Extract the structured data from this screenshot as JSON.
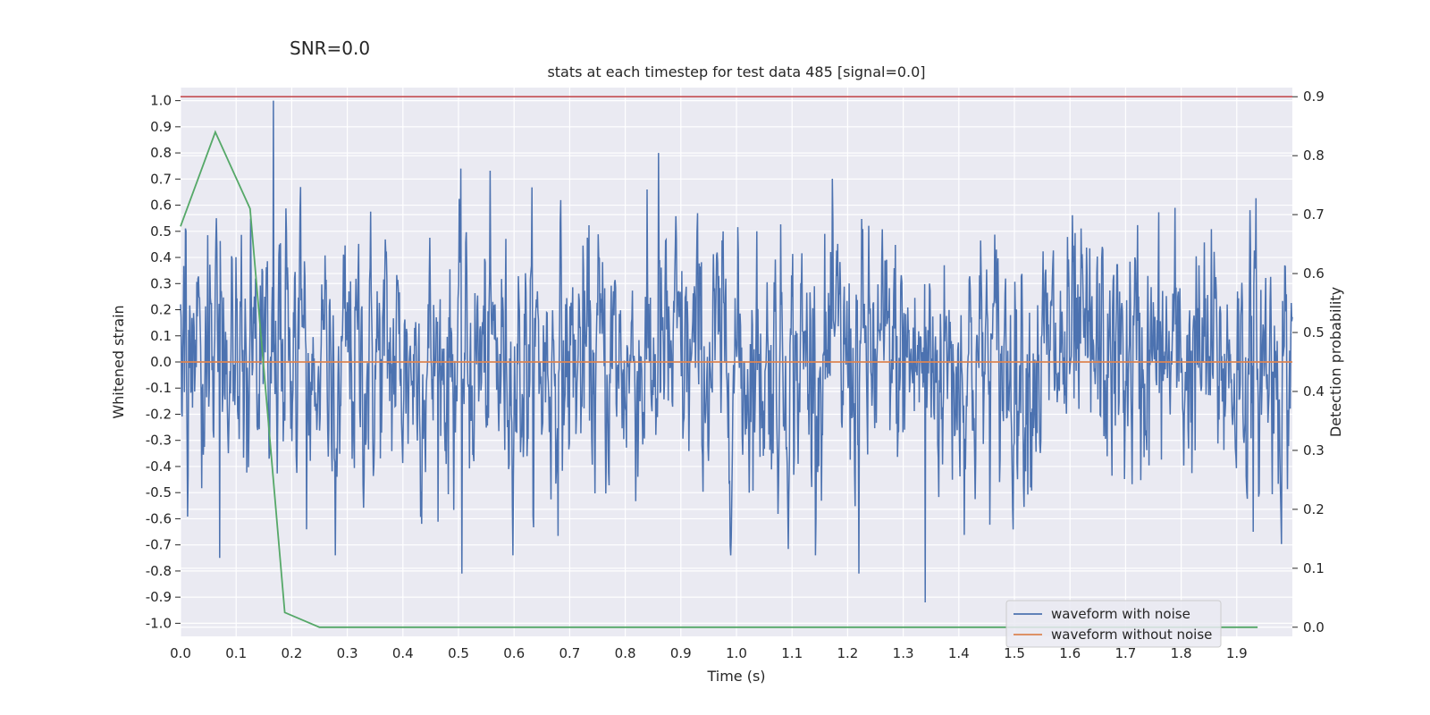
{
  "snr_label": "SNR=0.0",
  "chart_data": {
    "type": "line",
    "title": "stats at each timestep for test data 485 [signal=0.0]",
    "xlabel": "Time (s)",
    "ylabel": "Whitened strain",
    "y2label": "Detection probability",
    "xlim": [
      0.0,
      2.0
    ],
    "ylim": [
      -1.05,
      1.05
    ],
    "y2lim": [
      -0.0155,
      0.9155
    ],
    "xticks": [
      "0.0",
      "0.1",
      "0.2",
      "0.3",
      "0.4",
      "0.5",
      "0.6",
      "0.7",
      "0.8",
      "0.9",
      "1.0",
      "1.1",
      "1.2",
      "1.3",
      "1.4",
      "1.5",
      "1.6",
      "1.7",
      "1.8",
      "1.9"
    ],
    "yticks": [
      "1.0",
      "0.9",
      "0.8",
      "0.7",
      "0.6",
      "0.5",
      "0.4",
      "0.3",
      "0.2",
      "0.1",
      "0.0",
      "-0.1",
      "-0.2",
      "-0.3",
      "-0.4",
      "-0.5",
      "-0.6",
      "-0.7",
      "-0.8",
      "-0.9",
      "-1.0"
    ],
    "y2ticks": [
      "0.9",
      "0.8",
      "0.7",
      "0.6",
      "0.5",
      "0.4",
      "0.3",
      "0.2",
      "0.1",
      "0.0"
    ],
    "grid": true,
    "legend_position": "lower-right",
    "series": [
      {
        "name": "waveform with noise",
        "color": "#4c72b0",
        "axis": "left",
        "sampled": true,
        "x_range": [
          0.0,
          2.0
        ],
        "extremes": [
          {
            "x": 0.07,
            "y": -0.75
          },
          {
            "x": 0.167,
            "y": 1.0
          },
          {
            "x": 0.506,
            "y": -0.81
          },
          {
            "x": 0.86,
            "y": 0.8
          },
          {
            "x": 1.22,
            "y": -0.81
          },
          {
            "x": 1.34,
            "y": -0.92
          },
          {
            "x": 1.93,
            "y": -0.65
          }
        ]
      },
      {
        "name": "waveform without noise",
        "color": "#dd8452",
        "axis": "left",
        "x": [
          0.0,
          2.0
        ],
        "y": [
          0.0,
          0.0
        ]
      },
      {
        "color": "#55a868",
        "axis": "right",
        "x": [
          0.0,
          0.0625,
          0.125,
          0.1875,
          0.25,
          0.3125,
          0.375,
          0.4375,
          0.5,
          0.5625,
          0.625,
          0.6875,
          0.75,
          0.8125,
          0.875,
          0.9375,
          1.0,
          1.0625,
          1.125,
          1.1875,
          1.25,
          1.3125,
          1.375,
          1.4375,
          1.5,
          1.5625,
          1.625,
          1.6875,
          1.75,
          1.8125,
          1.875,
          1.9375
        ],
        "y": [
          0.68,
          0.84,
          0.71,
          0.025,
          0.0,
          0.0,
          0.0,
          0.0,
          0.0,
          0.0,
          0.0,
          0.0,
          0.0,
          0.0,
          0.0,
          0.0,
          0.0,
          0.0,
          0.0,
          0.0,
          0.0,
          0.0,
          0.0,
          0.0,
          0.0,
          0.0,
          0.0,
          0.0,
          0.0,
          0.0,
          0.0,
          0.0
        ]
      },
      {
        "color": "#c44e52",
        "axis": "right",
        "x": [
          0.0,
          2.0
        ],
        "y": [
          0.9,
          0.9
        ]
      }
    ]
  }
}
